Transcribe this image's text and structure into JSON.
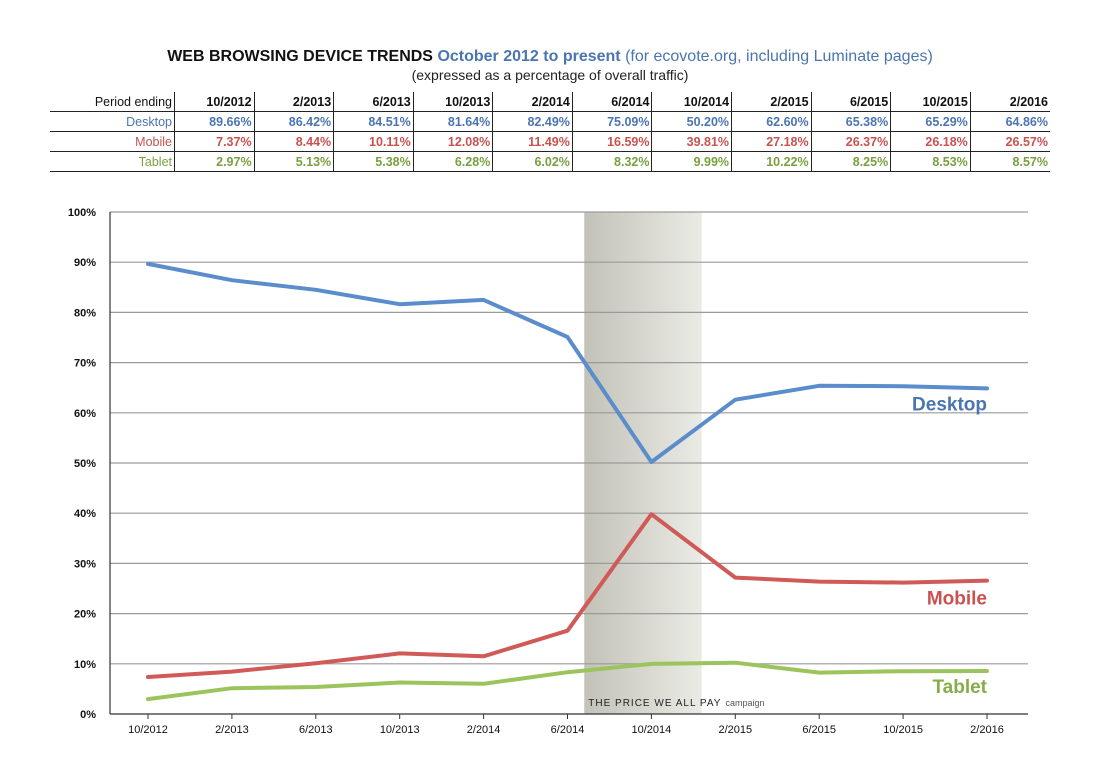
{
  "header": {
    "title_main": "WEB BROWSING DEVICE TRENDS",
    "title_range": "October 2012 to present",
    "title_note": "(for ecovote.org, including Luminate pages)",
    "subtitle": "(expressed as a percentage of overall traffic)"
  },
  "table": {
    "period_label": "Period ending",
    "periods": [
      "10/2012",
      "2/2013",
      "6/2013",
      "10/2013",
      "2/2014",
      "6/2014",
      "10/2014",
      "2/2015",
      "6/2015",
      "10/2015",
      "2/2016"
    ],
    "rows": [
      {
        "label": "Desktop",
        "values": [
          "89.66%",
          "86.42%",
          "84.51%",
          "81.64%",
          "82.49%",
          "75.09%",
          "50.20%",
          "62.60%",
          "65.38%",
          "65.29%",
          "64.86%"
        ]
      },
      {
        "label": "Mobile",
        "values": [
          "7.37%",
          "8.44%",
          "10.11%",
          "12.08%",
          "11.49%",
          "16.59%",
          "39.81%",
          "27.18%",
          "26.37%",
          "26.18%",
          "26.57%"
        ]
      },
      {
        "label": "Tablet",
        "values": [
          "2.97%",
          "5.13%",
          "5.38%",
          "6.28%",
          "6.02%",
          "8.32%",
          "9.99%",
          "10.22%",
          "8.25%",
          "8.53%",
          "8.57%"
        ]
      }
    ]
  },
  "chart_data": {
    "type": "line",
    "categories": [
      "10/2012",
      "2/2013",
      "6/2013",
      "10/2013",
      "2/2014",
      "6/2014",
      "10/2014",
      "2/2015",
      "6/2015",
      "10/2015",
      "2/2016"
    ],
    "ylim": [
      0,
      100
    ],
    "yticks": [
      "0%",
      "10%",
      "20%",
      "30%",
      "40%",
      "50%",
      "60%",
      "70%",
      "80%",
      "90%",
      "100%"
    ],
    "grid": true,
    "series": [
      {
        "name": "Desktop",
        "color": "#5b8ccb",
        "label_color": "#4a75b0",
        "values": [
          89.66,
          86.42,
          84.51,
          81.64,
          82.49,
          75.09,
          50.2,
          62.6,
          65.38,
          65.29,
          64.86
        ]
      },
      {
        "name": "Mobile",
        "color": "#d05a57",
        "label_color": "#c9524f",
        "values": [
          7.37,
          8.44,
          10.11,
          12.08,
          11.49,
          16.59,
          39.81,
          27.18,
          26.37,
          26.18,
          26.57
        ]
      },
      {
        "name": "Tablet",
        "color": "#9bc45c",
        "label_color": "#86ad48",
        "values": [
          2.97,
          5.13,
          5.38,
          6.28,
          6.02,
          8.32,
          9.99,
          10.22,
          8.25,
          8.53,
          8.57
        ]
      }
    ],
    "annotation": {
      "text": "THE PRICE WE ALL PAY",
      "suffix": "campaign",
      "x_start": 5.2,
      "x_end": 6.6
    }
  }
}
